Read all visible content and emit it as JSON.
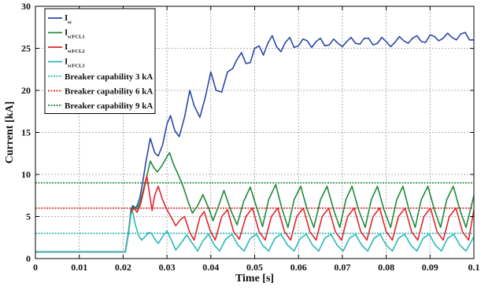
{
  "chart_data": {
    "type": "line",
    "xlabel": "Time [s]",
    "ylabel": "Current [kA]",
    "xlim": [
      0,
      0.1
    ],
    "ylim": [
      0,
      30
    ],
    "x_ticks": [
      "0",
      "0.01",
      "0.02",
      "0.03",
      "0.04",
      "0.05",
      "0.06",
      "0.07",
      "0.08",
      "0.09",
      "0.1"
    ],
    "y_ticks": [
      "0",
      "5",
      "10",
      "15",
      "20",
      "25",
      "30"
    ],
    "grid": true,
    "legend_position": "top-left",
    "series": [
      {
        "name": "I",
        "name_sub": "sc",
        "color": "#2a48a6",
        "points": [
          [
            0,
            0.8
          ],
          [
            0.0205,
            0.8
          ],
          [
            0.0212,
            3.0
          ],
          [
            0.0218,
            5.8
          ],
          [
            0.0222,
            6.3
          ],
          [
            0.0227,
            5.9
          ],
          [
            0.0232,
            6.3
          ],
          [
            0.0238,
            7.2
          ],
          [
            0.0245,
            9.2
          ],
          [
            0.0252,
            11.5
          ],
          [
            0.0262,
            14.3
          ],
          [
            0.0272,
            12.6
          ],
          [
            0.028,
            12.2
          ],
          [
            0.029,
            13.5
          ],
          [
            0.03,
            16.0
          ],
          [
            0.0308,
            17.0
          ],
          [
            0.0318,
            15.2
          ],
          [
            0.0328,
            14.5
          ],
          [
            0.034,
            16.8
          ],
          [
            0.0352,
            20.0
          ],
          [
            0.0362,
            18.2
          ],
          [
            0.0375,
            16.8
          ],
          [
            0.0388,
            19.3
          ],
          [
            0.04,
            22.2
          ],
          [
            0.0412,
            20.0
          ],
          [
            0.0425,
            19.8
          ],
          [
            0.0438,
            22.2
          ],
          [
            0.045,
            22.6
          ],
          [
            0.046,
            23.7
          ],
          [
            0.047,
            24.5
          ],
          [
            0.048,
            23.2
          ],
          [
            0.049,
            23.3
          ],
          [
            0.05,
            25.0
          ],
          [
            0.051,
            25.3
          ],
          [
            0.052,
            24.2
          ],
          [
            0.053,
            25.6
          ],
          [
            0.054,
            26.5
          ],
          [
            0.055,
            25.2
          ],
          [
            0.056,
            24.6
          ],
          [
            0.057,
            25.7
          ],
          [
            0.058,
            26.3
          ],
          [
            0.059,
            25.1
          ],
          [
            0.06,
            25.3
          ],
          [
            0.061,
            26.1
          ],
          [
            0.062,
            25.9
          ],
          [
            0.063,
            25.1
          ],
          [
            0.064,
            25.8
          ],
          [
            0.065,
            26.2
          ],
          [
            0.066,
            25.3
          ],
          [
            0.067,
            25.4
          ],
          [
            0.068,
            26.1
          ],
          [
            0.069,
            25.6
          ],
          [
            0.07,
            25.2
          ],
          [
            0.071,
            25.8
          ],
          [
            0.072,
            26.3
          ],
          [
            0.073,
            25.6
          ],
          [
            0.074,
            25.5
          ],
          [
            0.075,
            26.2
          ],
          [
            0.076,
            26.2
          ],
          [
            0.077,
            25.4
          ],
          [
            0.078,
            25.6
          ],
          [
            0.079,
            26.3
          ],
          [
            0.08,
            25.8
          ],
          [
            0.081,
            25.2
          ],
          [
            0.082,
            25.7
          ],
          [
            0.083,
            26.4
          ],
          [
            0.084,
            25.9
          ],
          [
            0.085,
            25.6
          ],
          [
            0.086,
            26.2
          ],
          [
            0.087,
            26.5
          ],
          [
            0.088,
            25.8
          ],
          [
            0.089,
            25.7
          ],
          [
            0.09,
            26.6
          ],
          [
            0.091,
            26.4
          ],
          [
            0.092,
            25.9
          ],
          [
            0.093,
            26.2
          ],
          [
            0.094,
            26.8
          ],
          [
            0.095,
            26.3
          ],
          [
            0.096,
            26.0
          ],
          [
            0.097,
            26.7
          ],
          [
            0.098,
            26.9
          ],
          [
            0.099,
            26.0
          ],
          [
            0.1,
            26.0
          ]
        ]
      },
      {
        "name": "I",
        "name_sub": "scFCL1",
        "color": "#1f8a3a",
        "points": [
          [
            0,
            0.8
          ],
          [
            0.0205,
            0.8
          ],
          [
            0.0212,
            3.0
          ],
          [
            0.0218,
            5.6
          ],
          [
            0.0225,
            6.2
          ],
          [
            0.0232,
            5.9
          ],
          [
            0.0238,
            6.6
          ],
          [
            0.0245,
            8.0
          ],
          [
            0.0255,
            10.0
          ],
          [
            0.0262,
            11.6
          ],
          [
            0.027,
            10.8
          ],
          [
            0.0278,
            10.3
          ],
          [
            0.0288,
            11.0
          ],
          [
            0.03,
            12.1
          ],
          [
            0.0306,
            12.6
          ],
          [
            0.0315,
            11.2
          ],
          [
            0.0328,
            9.7
          ],
          [
            0.0338,
            8.4
          ],
          [
            0.0348,
            6.8
          ],
          [
            0.0358,
            5.4
          ],
          [
            0.037,
            6.3
          ],
          [
            0.0382,
            7.6
          ],
          [
            0.0395,
            6.0
          ],
          [
            0.0405,
            4.5
          ],
          [
            0.0418,
            6.3
          ],
          [
            0.043,
            8.1
          ],
          [
            0.0445,
            5.8
          ],
          [
            0.046,
            4.0
          ],
          [
            0.0475,
            6.8
          ],
          [
            0.049,
            8.5
          ],
          [
            0.0505,
            6.0
          ],
          [
            0.0518,
            3.8
          ],
          [
            0.0532,
            7.0
          ],
          [
            0.0548,
            8.8
          ],
          [
            0.0562,
            6.0
          ],
          [
            0.0576,
            3.7
          ],
          [
            0.059,
            7.0
          ],
          [
            0.0605,
            8.6
          ],
          [
            0.062,
            5.8
          ],
          [
            0.0635,
            3.7
          ],
          [
            0.065,
            7.0
          ],
          [
            0.0665,
            8.6
          ],
          [
            0.068,
            5.8
          ],
          [
            0.0694,
            3.7
          ],
          [
            0.0708,
            7.0
          ],
          [
            0.0722,
            8.6
          ],
          [
            0.0737,
            5.8
          ],
          [
            0.0752,
            3.7
          ],
          [
            0.0766,
            7.0
          ],
          [
            0.078,
            8.6
          ],
          [
            0.0795,
            5.8
          ],
          [
            0.081,
            3.7
          ],
          [
            0.0824,
            7.0
          ],
          [
            0.0838,
            8.6
          ],
          [
            0.0852,
            5.8
          ],
          [
            0.0866,
            3.7
          ],
          [
            0.088,
            7.0
          ],
          [
            0.0895,
            8.6
          ],
          [
            0.091,
            5.8
          ],
          [
            0.0924,
            3.7
          ],
          [
            0.0938,
            7.0
          ],
          [
            0.0953,
            8.6
          ],
          [
            0.0968,
            5.8
          ],
          [
            0.0982,
            3.7
          ],
          [
            0.1,
            7.5
          ]
        ]
      },
      {
        "name": "I",
        "name_sub": "scFCL2",
        "color": "#e0262c",
        "points": [
          [
            0,
            0.8
          ],
          [
            0.0205,
            0.8
          ],
          [
            0.0212,
            3.0
          ],
          [
            0.0218,
            5.5
          ],
          [
            0.0225,
            6.0
          ],
          [
            0.0232,
            5.5
          ],
          [
            0.024,
            6.5
          ],
          [
            0.0248,
            8.3
          ],
          [
            0.0254,
            9.8
          ],
          [
            0.026,
            7.8
          ],
          [
            0.0266,
            5.7
          ],
          [
            0.0272,
            7.5
          ],
          [
            0.028,
            8.6
          ],
          [
            0.029,
            7.0
          ],
          [
            0.03,
            5.8
          ],
          [
            0.031,
            4.9
          ],
          [
            0.032,
            3.9
          ],
          [
            0.033,
            4.6
          ],
          [
            0.034,
            5.0
          ],
          [
            0.0352,
            3.1
          ],
          [
            0.0362,
            2.2
          ],
          [
            0.0375,
            4.9
          ],
          [
            0.0385,
            5.6
          ],
          [
            0.0398,
            3.4
          ],
          [
            0.041,
            2.2
          ],
          [
            0.0425,
            5.0
          ],
          [
            0.0438,
            5.8
          ],
          [
            0.0452,
            3.2
          ],
          [
            0.0465,
            2.3
          ],
          [
            0.048,
            5.0
          ],
          [
            0.0495,
            6.0
          ],
          [
            0.051,
            3.2
          ],
          [
            0.0524,
            2.2
          ],
          [
            0.0538,
            5.0
          ],
          [
            0.0553,
            6.0
          ],
          [
            0.0568,
            3.2
          ],
          [
            0.0582,
            2.2
          ],
          [
            0.0596,
            5.0
          ],
          [
            0.0611,
            6.0
          ],
          [
            0.0626,
            3.2
          ],
          [
            0.064,
            2.2
          ],
          [
            0.0654,
            5.0
          ],
          [
            0.0669,
            6.0
          ],
          [
            0.0684,
            3.2
          ],
          [
            0.0698,
            2.2
          ],
          [
            0.0712,
            5.0
          ],
          [
            0.0727,
            6.0
          ],
          [
            0.0742,
            3.2
          ],
          [
            0.0756,
            2.2
          ],
          [
            0.077,
            5.0
          ],
          [
            0.0785,
            6.0
          ],
          [
            0.08,
            3.2
          ],
          [
            0.0814,
            2.2
          ],
          [
            0.0828,
            5.0
          ],
          [
            0.0843,
            6.0
          ],
          [
            0.0858,
            3.2
          ],
          [
            0.0872,
            2.2
          ],
          [
            0.0886,
            5.0
          ],
          [
            0.0901,
            6.0
          ],
          [
            0.0916,
            3.2
          ],
          [
            0.093,
            2.2
          ],
          [
            0.0944,
            5.0
          ],
          [
            0.0959,
            6.0
          ],
          [
            0.0974,
            3.2
          ],
          [
            0.0988,
            2.2
          ],
          [
            0.1,
            5.8
          ]
        ]
      },
      {
        "name": "I",
        "name_sub": "scFCL3",
        "color": "#2ab8b8",
        "points": [
          [
            0,
            0.8
          ],
          [
            0.0205,
            0.8
          ],
          [
            0.0212,
            3.0
          ],
          [
            0.0218,
            5.4
          ],
          [
            0.0222,
            5.5
          ],
          [
            0.0228,
            4.0
          ],
          [
            0.0235,
            2.8
          ],
          [
            0.0242,
            2.2
          ],
          [
            0.025,
            2.6
          ],
          [
            0.0258,
            3.1
          ],
          [
            0.0265,
            3.0
          ],
          [
            0.0272,
            2.3
          ],
          [
            0.028,
            1.8
          ],
          [
            0.029,
            2.6
          ],
          [
            0.03,
            3.3
          ],
          [
            0.031,
            2.2
          ],
          [
            0.032,
            1.0
          ],
          [
            0.0332,
            1.8
          ],
          [
            0.0345,
            2.8
          ],
          [
            0.0358,
            1.8
          ],
          [
            0.037,
            0.9
          ],
          [
            0.0382,
            2.1
          ],
          [
            0.0395,
            2.9
          ],
          [
            0.0408,
            1.6
          ],
          [
            0.042,
            0.9
          ],
          [
            0.0434,
            2.3
          ],
          [
            0.0448,
            2.9
          ],
          [
            0.0462,
            1.6
          ],
          [
            0.0476,
            0.9
          ],
          [
            0.049,
            2.4
          ],
          [
            0.0504,
            2.9
          ],
          [
            0.0518,
            1.6
          ],
          [
            0.0532,
            0.9
          ],
          [
            0.0546,
            2.4
          ],
          [
            0.056,
            2.9
          ],
          [
            0.0575,
            1.6
          ],
          [
            0.059,
            0.9
          ],
          [
            0.0604,
            2.4
          ],
          [
            0.0618,
            2.9
          ],
          [
            0.0632,
            1.6
          ],
          [
            0.0646,
            0.9
          ],
          [
            0.066,
            2.4
          ],
          [
            0.0674,
            2.9
          ],
          [
            0.0688,
            1.6
          ],
          [
            0.0702,
            0.9
          ],
          [
            0.0716,
            2.4
          ],
          [
            0.073,
            2.9
          ],
          [
            0.0744,
            1.6
          ],
          [
            0.0758,
            0.9
          ],
          [
            0.0772,
            2.4
          ],
          [
            0.0786,
            2.9
          ],
          [
            0.08,
            1.6
          ],
          [
            0.0814,
            0.9
          ],
          [
            0.0828,
            2.4
          ],
          [
            0.0842,
            2.9
          ],
          [
            0.0856,
            1.6
          ],
          [
            0.087,
            0.9
          ],
          [
            0.0884,
            2.4
          ],
          [
            0.0898,
            2.9
          ],
          [
            0.0912,
            1.6
          ],
          [
            0.0926,
            0.9
          ],
          [
            0.094,
            2.4
          ],
          [
            0.0954,
            2.9
          ],
          [
            0.0968,
            1.6
          ],
          [
            0.0982,
            0.9
          ],
          [
            0.1,
            2.6
          ]
        ]
      }
    ],
    "reference_lines": [
      {
        "name": "Breaker capability 3 kA",
        "value": 3,
        "color": "#2ab8b8"
      },
      {
        "name": "Breaker capability 6 kA",
        "value": 6,
        "color": "#e0262c"
      },
      {
        "name": "Breaker capability 9 kA",
        "value": 9,
        "color": "#1f8a3a"
      }
    ]
  }
}
